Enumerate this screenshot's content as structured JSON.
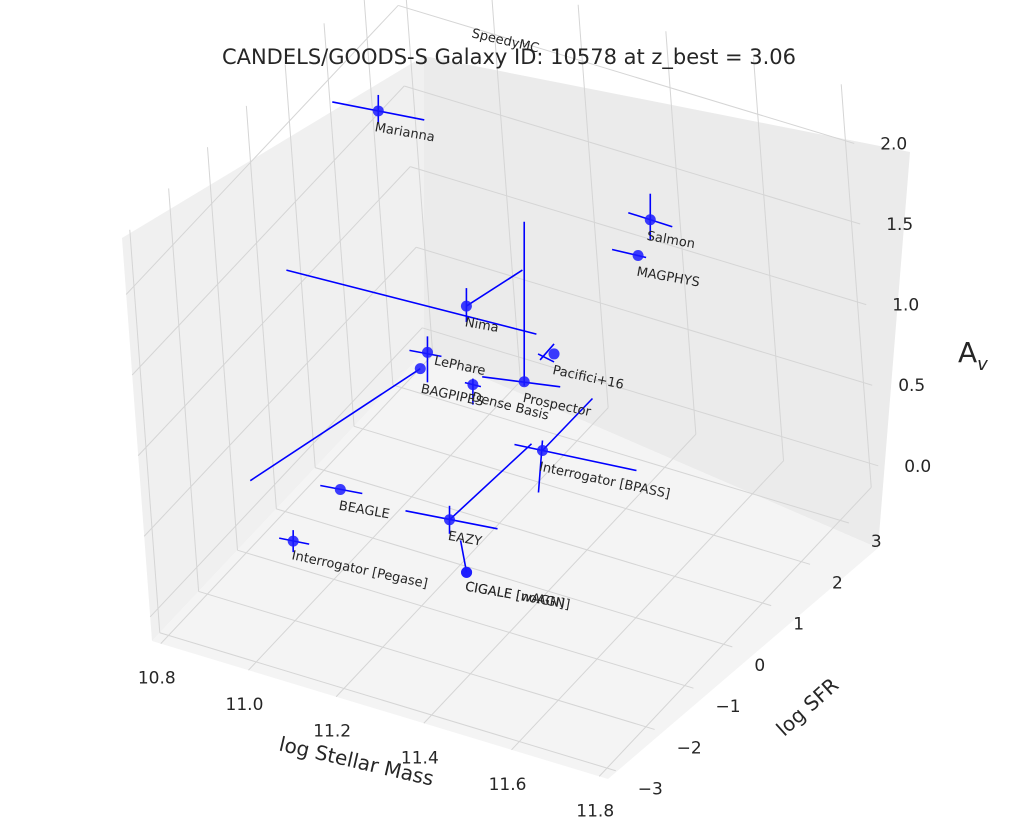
{
  "chart_data": {
    "type": "scatter-3d",
    "title": "CANDELS/GOODS-S Galaxy ID: 10578 at z_best = 3.06",
    "xlabel": "log Stellar Mass",
    "ylabel": "log SFR",
    "zlabel_main": "A",
    "zlabel_sub": "v",
    "xlim": [
      10.78,
      11.82
    ],
    "ylim": [
      -3.2,
      3.8
    ],
    "zlim": [
      -0.15,
      2.35
    ],
    "xticks": [
      "10.8",
      "11.0",
      "11.2",
      "11.4",
      "11.6",
      "11.8"
    ],
    "yticks": [
      "−3",
      "−2",
      "−1",
      "0",
      "1",
      "2",
      "3"
    ],
    "zticks": [
      "0.0",
      "0.5",
      "1.0",
      "1.5",
      "2.0"
    ],
    "grid": true,
    "marker_color": "#1a1aff",
    "errorbar_color": "#0000ff",
    "points": [
      {
        "name": "SpeedyMC",
        "x": 11.0,
        "y": 3.3,
        "z": 2.1
      },
      {
        "name": "Marianna",
        "x": 10.95,
        "y": 1.4,
        "z": 2.1
      },
      {
        "name": "Salmon",
        "x": 11.6,
        "y": 1.05,
        "z": 2.05
      },
      {
        "name": "MAGPHYS",
        "x": 11.58,
        "y": 0.9,
        "z": 1.85
      },
      {
        "name": "Nima",
        "x": 11.2,
        "y": 0.6,
        "z": 1.3
      },
      {
        "name": "Pacifici+16",
        "x": 11.45,
        "y": 0.05,
        "z": 1.35
      },
      {
        "name": "Prospector",
        "x": 11.4,
        "y": -0.2,
        "z": 1.2
      },
      {
        "name": "LePhare",
        "x": 11.15,
        "y": 0.1,
        "z": 1.1
      },
      {
        "name": "BAGPIPES",
        "x": 11.15,
        "y": -0.1,
        "z": 1.05
      },
      {
        "name": "Dense Basis",
        "x": 11.27,
        "y": -0.1,
        "z": 1.05
      },
      {
        "name": "Interrogator [BPASS]",
        "x": 11.46,
        "y": -0.5,
        "z": 0.9
      },
      {
        "name": "BEAGLE",
        "x": 11.05,
        "y": -1.2,
        "z": 0.5
      },
      {
        "name": "EAZY",
        "x": 11.28,
        "y": -1.0,
        "z": 0.45
      },
      {
        "name": "CIGALE [noAGN]",
        "x": 11.34,
        "y": -1.3,
        "z": 0.25
      },
      {
        "name": "CIGALE [wAGN]",
        "x": 11.34,
        "y": -1.3,
        "z": 0.25
      },
      {
        "name": "Interrogator [Pegase]",
        "x": 10.98,
        "y": -1.7,
        "z": 0.25
      }
    ]
  }
}
